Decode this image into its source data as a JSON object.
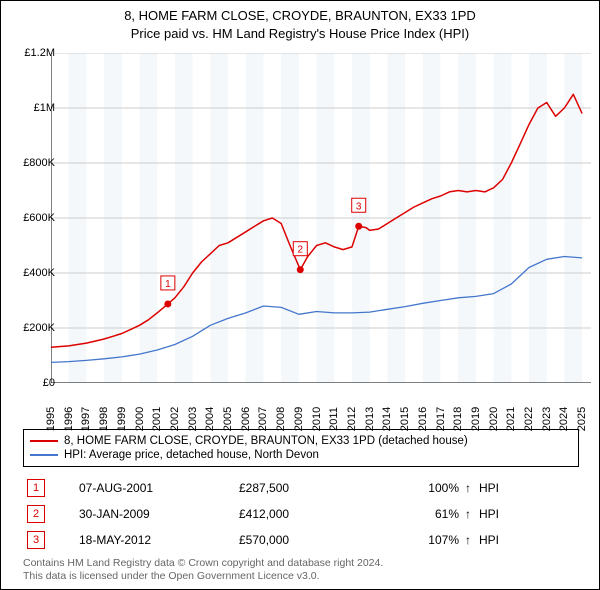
{
  "title": {
    "line1": "8, HOME FARM CLOSE, CROYDE, BRAUNTON, EX33 1PD",
    "line2": "Price paid vs. HM Land Registry's House Price Index (HPI)"
  },
  "chart": {
    "type": "line",
    "background_color": "#ffffff",
    "alt_band_color": "#eaf1f8",
    "grid_color": "#cccccc",
    "axis_color": "#000000",
    "y": {
      "min": 0,
      "max": 1200000,
      "ticks": [
        0,
        200000,
        400000,
        600000,
        800000,
        1000000,
        1200000
      ],
      "tick_labels": [
        "£0",
        "£200K",
        "£400K",
        "£600K",
        "£800K",
        "£1M",
        "£1.2M"
      ]
    },
    "x": {
      "min": 1995,
      "max": 2025.5,
      "ticks": [
        1995,
        1996,
        1997,
        1998,
        1999,
        2000,
        2001,
        2002,
        2003,
        2004,
        2005,
        2006,
        2007,
        2008,
        2009,
        2010,
        2011,
        2012,
        2013,
        2014,
        2015,
        2016,
        2017,
        2018,
        2019,
        2020,
        2021,
        2022,
        2023,
        2024,
        2025
      ],
      "labels": [
        "1995",
        "1996",
        "1997",
        "1998",
        "1999",
        "2000",
        "2001",
        "2002",
        "2003",
        "2004",
        "2005",
        "2006",
        "2007",
        "2008",
        "2009",
        "2010",
        "2011",
        "2012",
        "2013",
        "2014",
        "2015",
        "2016",
        "2017",
        "2018",
        "2019",
        "2020",
        "2021",
        "2022",
        "2023",
        "2024",
        "2025"
      ]
    },
    "series": [
      {
        "name": "8, HOME FARM CLOSE, CROYDE, BRAUNTON, EX33 1PD (detached house)",
        "color": "#dd0000",
        "width": 1.5,
        "points": [
          [
            1995.0,
            130000
          ],
          [
            1996.0,
            135000
          ],
          [
            1997.0,
            145000
          ],
          [
            1998.0,
            160000
          ],
          [
            1998.5,
            170000
          ],
          [
            1999.0,
            180000
          ],
          [
            1999.5,
            195000
          ],
          [
            2000.0,
            210000
          ],
          [
            2000.5,
            230000
          ],
          [
            2001.0,
            255000
          ],
          [
            2001.6,
            287500
          ],
          [
            2002.0,
            310000
          ],
          [
            2002.5,
            350000
          ],
          [
            2003.0,
            400000
          ],
          [
            2003.5,
            440000
          ],
          [
            2004.0,
            470000
          ],
          [
            2004.5,
            500000
          ],
          [
            2005.0,
            510000
          ],
          [
            2005.5,
            530000
          ],
          [
            2006.0,
            550000
          ],
          [
            2006.5,
            570000
          ],
          [
            2007.0,
            590000
          ],
          [
            2007.5,
            600000
          ],
          [
            2008.0,
            580000
          ],
          [
            2008.5,
            500000
          ],
          [
            2009.08,
            412000
          ],
          [
            2009.5,
            460000
          ],
          [
            2010.0,
            500000
          ],
          [
            2010.5,
            510000
          ],
          [
            2011.0,
            495000
          ],
          [
            2011.5,
            485000
          ],
          [
            2012.0,
            495000
          ],
          [
            2012.38,
            570000
          ],
          [
            2012.8,
            565000
          ],
          [
            2013.0,
            555000
          ],
          [
            2013.5,
            560000
          ],
          [
            2014.0,
            580000
          ],
          [
            2014.5,
            600000
          ],
          [
            2015.0,
            620000
          ],
          [
            2015.5,
            640000
          ],
          [
            2016.0,
            655000
          ],
          [
            2016.5,
            670000
          ],
          [
            2017.0,
            680000
          ],
          [
            2017.5,
            695000
          ],
          [
            2018.0,
            700000
          ],
          [
            2018.5,
            695000
          ],
          [
            2019.0,
            700000
          ],
          [
            2019.5,
            695000
          ],
          [
            2020.0,
            710000
          ],
          [
            2020.5,
            740000
          ],
          [
            2021.0,
            800000
          ],
          [
            2021.5,
            870000
          ],
          [
            2022.0,
            940000
          ],
          [
            2022.5,
            1000000
          ],
          [
            2023.0,
            1020000
          ],
          [
            2023.5,
            970000
          ],
          [
            2024.0,
            1000000
          ],
          [
            2024.5,
            1050000
          ],
          [
            2025.0,
            980000
          ]
        ]
      },
      {
        "name": "HPI: Average price, detached house, North Devon",
        "color": "#4477cc",
        "width": 1.3,
        "points": [
          [
            1995.0,
            75000
          ],
          [
            1996.0,
            78000
          ],
          [
            1997.0,
            82000
          ],
          [
            1998.0,
            88000
          ],
          [
            1999.0,
            95000
          ],
          [
            2000.0,
            105000
          ],
          [
            2001.0,
            120000
          ],
          [
            2002.0,
            140000
          ],
          [
            2003.0,
            170000
          ],
          [
            2004.0,
            210000
          ],
          [
            2005.0,
            235000
          ],
          [
            2006.0,
            255000
          ],
          [
            2007.0,
            280000
          ],
          [
            2008.0,
            275000
          ],
          [
            2009.0,
            250000
          ],
          [
            2010.0,
            260000
          ],
          [
            2011.0,
            255000
          ],
          [
            2012.0,
            255000
          ],
          [
            2013.0,
            258000
          ],
          [
            2014.0,
            268000
          ],
          [
            2015.0,
            278000
          ],
          [
            2016.0,
            290000
          ],
          [
            2017.0,
            300000
          ],
          [
            2018.0,
            310000
          ],
          [
            2019.0,
            315000
          ],
          [
            2020.0,
            325000
          ],
          [
            2021.0,
            360000
          ],
          [
            2022.0,
            420000
          ],
          [
            2023.0,
            450000
          ],
          [
            2024.0,
            460000
          ],
          [
            2025.0,
            455000
          ]
        ]
      }
    ],
    "markers": [
      {
        "n": "1",
        "x": 2001.6,
        "y": 287500,
        "color": "#dd0000"
      },
      {
        "n": "2",
        "x": 2009.08,
        "y": 412000,
        "color": "#dd0000"
      },
      {
        "n": "3",
        "x": 2012.38,
        "y": 570000,
        "color": "#dd0000"
      }
    ]
  },
  "legend": {
    "items": [
      {
        "label": "8, HOME FARM CLOSE, CROYDE, BRAUNTON, EX33 1PD (detached house)",
        "color": "#dd0000"
      },
      {
        "label": "HPI: Average price, detached house, North Devon",
        "color": "#4477cc"
      }
    ]
  },
  "marker_rows": [
    {
      "n": "1",
      "date": "07-AUG-2001",
      "price": "£287,500",
      "pct": "100%",
      "arrow": "↑",
      "hpi": "HPI",
      "color": "#dd0000"
    },
    {
      "n": "2",
      "date": "30-JAN-2009",
      "price": "£412,000",
      "pct": "61%",
      "arrow": "↑",
      "hpi": "HPI",
      "color": "#dd0000"
    },
    {
      "n": "3",
      "date": "18-MAY-2012",
      "price": "£570,000",
      "pct": "107%",
      "arrow": "↑",
      "hpi": "HPI",
      "color": "#dd0000"
    }
  ],
  "footer": {
    "line1": "Contains HM Land Registry data © Crown copyright and database right 2024.",
    "line2": "This data is licensed under the Open Government Licence v3.0."
  }
}
